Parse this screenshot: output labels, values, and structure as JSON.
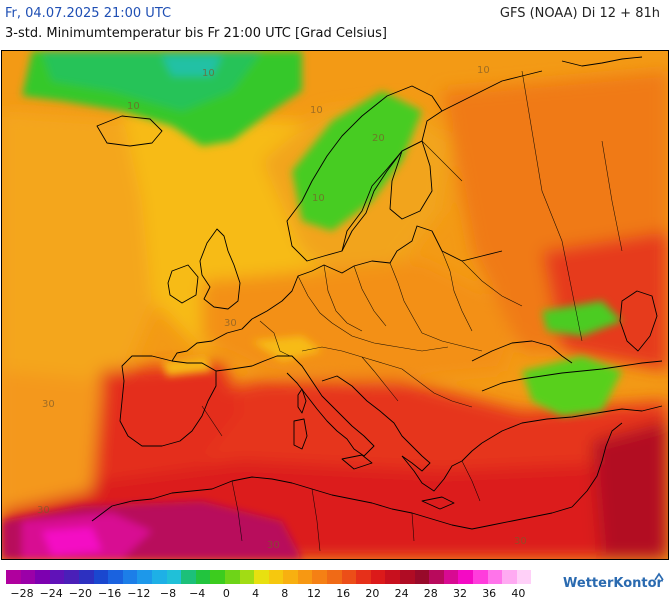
{
  "header": {
    "valid_time": "Fr, 04.07.2025 21:00 UTC",
    "model_run": "GFS (NOAA) Di 12 + 81h",
    "parameter": "3-std. Minimumtemperatur bis Fr 21:00 UTC [Grad Celsius]"
  },
  "map": {
    "region": "Europe",
    "isoline_labels": [
      "10",
      "10",
      "10",
      "10",
      "10",
      "20",
      "30",
      "30",
      "30",
      "30",
      "30"
    ]
  },
  "legend": {
    "tick_labels": [
      "−28",
      "−24",
      "−20",
      "−16",
      "−12",
      "−8",
      "−4",
      "0",
      "4",
      "8",
      "12",
      "16",
      "20",
      "24",
      "28",
      "32",
      "36",
      "40"
    ],
    "colors": [
      "#b0009e",
      "#9b00a8",
      "#7d00b0",
      "#6012b8",
      "#4a1fb8",
      "#2d30c0",
      "#1a47cf",
      "#1a62df",
      "#1c7ee8",
      "#1d98ea",
      "#1eb0e6",
      "#20c0d8",
      "#1cc07a",
      "#22c43e",
      "#3ccc1e",
      "#6ed418",
      "#a2dc14",
      "#e8e010",
      "#f6c80e",
      "#f8b010",
      "#f79812",
      "#f58014",
      "#f06a16",
      "#ec4e18",
      "#e6301a",
      "#dc1a1a",
      "#c8101e",
      "#b00c24",
      "#980a2a",
      "#b80a5c",
      "#d80a92",
      "#f40ac4",
      "#ff3cdc",
      "#ff74ea",
      "#ffaaf2",
      "#ffd0f8"
    ],
    "unit": "Grad Celsius"
  },
  "brand": {
    "name": "WetterKontor"
  }
}
